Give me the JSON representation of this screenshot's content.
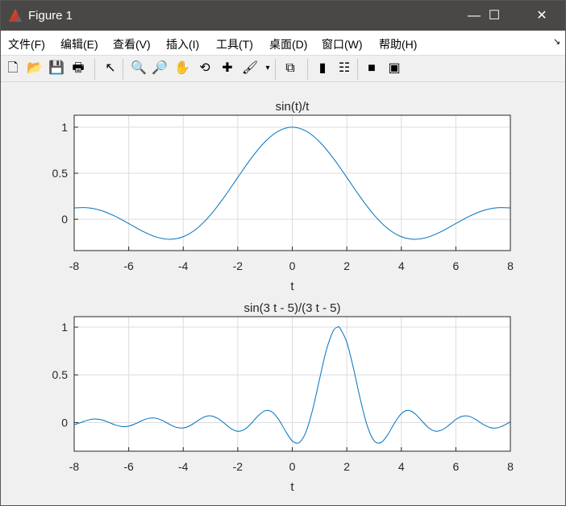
{
  "window": {
    "title": "Figure 1",
    "minimize": "—",
    "maximize": "☐",
    "close": "✕"
  },
  "menu": [
    "文件(F)",
    "编辑(E)",
    "查看(V)",
    "插入(I)",
    "工具(T)",
    "桌面(D)",
    "窗口(W)",
    "帮助(H)"
  ],
  "menu_overflow": "↘",
  "toolbar": [
    {
      "name": "new-figure-icon",
      "glyph": "🗋"
    },
    {
      "name": "open-file-icon",
      "glyph": "📂"
    },
    {
      "name": "save-icon",
      "glyph": "💾"
    },
    {
      "name": "print-icon",
      "glyph": "🖶"
    },
    {
      "name": "edit-plot-arrow-icon",
      "glyph": "↖"
    },
    {
      "name": "zoom-in-icon",
      "glyph": "🔍"
    },
    {
      "name": "zoom-out-icon",
      "glyph": "🔎"
    },
    {
      "name": "pan-hand-icon",
      "glyph": "✋"
    },
    {
      "name": "rotate-3d-icon",
      "glyph": "⟲"
    },
    {
      "name": "data-cursor-icon",
      "glyph": "✚"
    },
    {
      "name": "brush-icon",
      "glyph": "🖌"
    },
    {
      "name": "brush-dropdown-icon",
      "glyph": "▾"
    },
    {
      "name": "link-plot-icon",
      "glyph": "⧉"
    },
    {
      "name": "colorbar-icon",
      "glyph": "▮"
    },
    {
      "name": "legend-icon",
      "glyph": "☷"
    },
    {
      "name": "hide-plot-tools-icon",
      "glyph": "■"
    },
    {
      "name": "show-plot-tools-icon",
      "glyph": "▣"
    }
  ],
  "colors": {
    "line": "#0072bd",
    "grid": "#dcdcdc",
    "axes": "#262626"
  },
  "chart_data": [
    {
      "type": "line",
      "title": "sin(t)/t",
      "xlabel": "t",
      "ylabel": "",
      "xlim": [
        -8,
        8
      ],
      "ylim": [
        -0.34,
        1.13
      ],
      "grid": true,
      "xticks": [
        "-8",
        "-6",
        "-4",
        "-2",
        "0",
        "2",
        "4",
        "6",
        "8"
      ],
      "yticks": [
        "0",
        "0.5",
        "1"
      ],
      "x": [
        -8,
        -7.5,
        -7,
        -6.5,
        -6,
        -5.5,
        -5,
        -4.5,
        -4,
        -3.5,
        -3,
        -2.5,
        -2,
        -1.5,
        -1,
        -0.5,
        0,
        0.5,
        1,
        1.5,
        2,
        2.5,
        3,
        3.5,
        4,
        4.5,
        5,
        5.5,
        6,
        6.5,
        7,
        7.5,
        8
      ],
      "y": [
        0.1237,
        0.1251,
        0.0939,
        0.0331,
        -0.0466,
        -0.1283,
        -0.1918,
        -0.2172,
        -0.1892,
        -0.1002,
        0.047,
        0.2394,
        0.4546,
        0.665,
        0.8415,
        0.9589,
        1,
        0.9589,
        0.8415,
        0.665,
        0.4546,
        0.2394,
        0.047,
        -0.1002,
        -0.1892,
        -0.2172,
        -0.1918,
        -0.1283,
        -0.0466,
        0.0331,
        0.0939,
        0.1251,
        0.1237
      ]
    },
    {
      "type": "line",
      "title": "sin(3 t - 5)/(3 t - 5)",
      "xlabel": "t",
      "ylabel": "",
      "xlim": [
        -8,
        8
      ],
      "ylim": [
        -0.3,
        1.11
      ],
      "grid": true,
      "xticks": [
        "-8",
        "-6",
        "-4",
        "-2",
        "0",
        "2",
        "4",
        "6",
        "8"
      ],
      "yticks": [
        "0",
        "0.5",
        "1"
      ],
      "x": [
        -8,
        -7.75,
        -7.5,
        -7.25,
        -7,
        -6.75,
        -6.5,
        -6.25,
        -6,
        -5.75,
        -5.5,
        -5.25,
        -5,
        -4.75,
        -4.5,
        -4.25,
        -4,
        -3.75,
        -3.5,
        -3.25,
        -3,
        -2.75,
        -2.5,
        -2.25,
        -2,
        -1.75,
        -1.5,
        -1.25,
        -1,
        -0.75,
        -0.5,
        -0.25,
        0,
        0.25,
        0.5,
        0.75,
        1,
        1.25,
        1.5,
        1.6667,
        1.75,
        2,
        2.25,
        2.5,
        2.75,
        3,
        3.25,
        3.5,
        3.75,
        4,
        4.25,
        4.5,
        4.75,
        5,
        5.25,
        5.5,
        5.75,
        6,
        6.25,
        6.5,
        6.75,
        7,
        7.25,
        7.5,
        7.75,
        8
      ],
      "y": [
        -0.0229,
        0.0009,
        0.0255,
        0.0373,
        0.0293,
        0.0046,
        -0.0242,
        -0.0414,
        -0.0368,
        -0.0115,
        0.0219,
        0.0456,
        0.0456,
        0.0202,
        -0.0185,
        -0.0502,
        -0.0566,
        -0.0319,
        0.0133,
        0.0564,
        0.0708,
        0.0462,
        -0.0053,
        -0.0616,
        -0.0909,
        -0.0716,
        -0.0079,
        0.0712,
        0.1237,
        0.1135,
        0.0331,
        -0.0881,
        -0.1918,
        -0.2106,
        -0.1002,
        0.1388,
        0.4546,
        0.7592,
        0.9589,
        1,
        0.9896,
        0.8415,
        0.5623,
        0.2394,
        -0.0333,
        -0.1892,
        -0.2104,
        -0.1283,
        -0.0053,
        0.0939,
        0.1283,
        0.0939,
        0.0188,
        -0.0544,
        -0.0903,
        -0.0761,
        -0.0261,
        0.0323,
        0.0671,
        0.0645,
        0.029,
        -0.018,
        -0.0516,
        -0.056,
        -0.0309,
        0.0079
      ]
    }
  ]
}
